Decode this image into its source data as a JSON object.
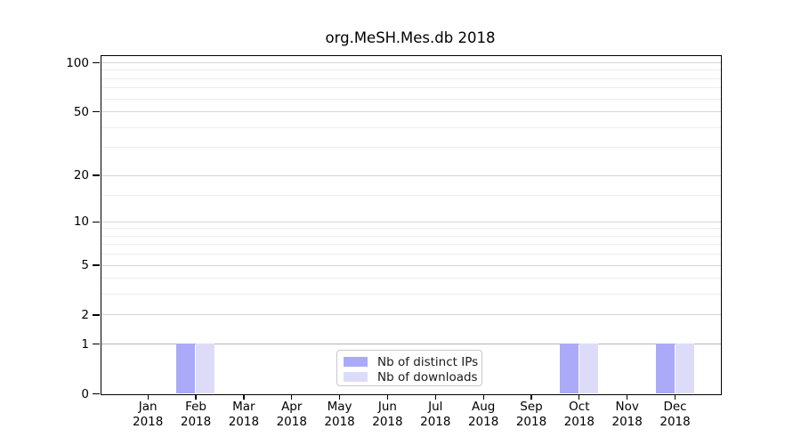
{
  "chart_data": {
    "type": "bar",
    "title": "org.MeSH.Mes.db 2018",
    "categories": [
      "Jan 2018",
      "Feb 2018",
      "Mar 2018",
      "Apr 2018",
      "May 2018",
      "Jun 2018",
      "Jul 2018",
      "Aug 2018",
      "Sep 2018",
      "Oct 2018",
      "Nov 2018",
      "Dec 2018"
    ],
    "series": [
      {
        "name": "Nb of distinct IPs",
        "color": "#aaaaf8",
        "values": [
          0,
          1,
          0,
          0,
          0,
          0,
          0,
          0,
          0,
          1,
          0,
          1
        ]
      },
      {
        "name": "Nb of downloads",
        "color": "#dcdcf9",
        "values": [
          0,
          1,
          0,
          0,
          0,
          0,
          0,
          0,
          0,
          1,
          0,
          1
        ]
      }
    ],
    "xlabel": "",
    "ylabel": "",
    "y_scale": "log1p",
    "y_major_ticks": [
      0,
      1,
      2,
      5,
      10,
      20,
      50,
      100
    ],
    "y_minor_gridlines": [
      3,
      4,
      6,
      7,
      8,
      9,
      15,
      30,
      40,
      60,
      70,
      80,
      90
    ],
    "ylim": [
      0,
      111
    ],
    "grid": true,
    "legend_position": "bottom-center",
    "colors": {
      "axis": "#000000",
      "major_grid": "#d7d7d7",
      "minor_grid": "#ededed",
      "unit_grid": "#b7b7b7",
      "background": "#ffffff"
    }
  }
}
